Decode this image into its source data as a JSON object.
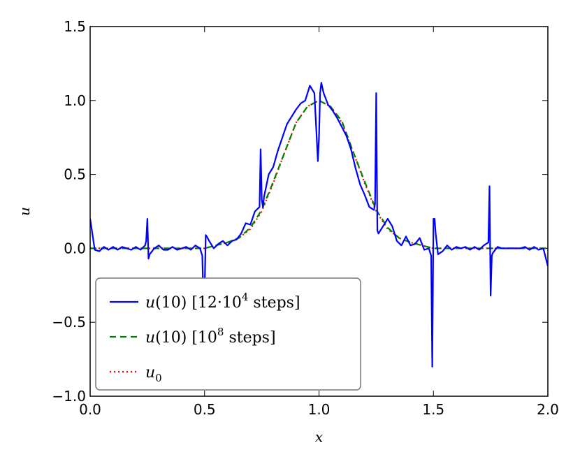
{
  "chart_data": {
    "type": "line",
    "xlabel": "x",
    "ylabel": "u",
    "xlim": [
      0.0,
      2.0
    ],
    "ylim": [
      -1.0,
      1.5
    ],
    "xticks": [
      "0.0",
      "0.5",
      "1.0",
      "1.5",
      "2.0"
    ],
    "yticks": [
      "−1.0",
      "−0.5",
      "0.0",
      "0.5",
      "1.0",
      "1.5"
    ],
    "xtick_values": [
      0.0,
      0.5,
      1.0,
      1.5,
      2.0
    ],
    "ytick_values": [
      -1.0,
      -0.5,
      0.0,
      0.5,
      1.0,
      1.5
    ],
    "grid": false,
    "legend_position": "lower-left",
    "series": [
      {
        "name": "u(10) [12·10^4  steps]",
        "legend": {
          "pre": "u",
          "mid": "(10) [12·10",
          "sup": "4",
          "post": "  steps]"
        },
        "color": "#0000ff",
        "style": "solid",
        "x": [
          0.0,
          0.02,
          0.04,
          0.06,
          0.08,
          0.1,
          0.12,
          0.14,
          0.16,
          0.18,
          0.2,
          0.22,
          0.24,
          0.245,
          0.25,
          0.255,
          0.26,
          0.28,
          0.3,
          0.32,
          0.34,
          0.36,
          0.38,
          0.4,
          0.42,
          0.44,
          0.46,
          0.48,
          0.49,
          0.495,
          0.5,
          0.505,
          0.51,
          0.52,
          0.54,
          0.56,
          0.58,
          0.6,
          0.62,
          0.64,
          0.66,
          0.68,
          0.7,
          0.72,
          0.74,
          0.745,
          0.75,
          0.755,
          0.76,
          0.78,
          0.8,
          0.82,
          0.84,
          0.86,
          0.88,
          0.9,
          0.92,
          0.94,
          0.96,
          0.98,
          0.99,
          0.995,
          1.0,
          1.005,
          1.01,
          1.02,
          1.04,
          1.06,
          1.08,
          1.1,
          1.12,
          1.14,
          1.16,
          1.18,
          1.2,
          1.22,
          1.24,
          1.245,
          1.25,
          1.255,
          1.26,
          1.28,
          1.3,
          1.32,
          1.34,
          1.36,
          1.38,
          1.4,
          1.42,
          1.44,
          1.46,
          1.48,
          1.49,
          1.495,
          1.5,
          1.505,
          1.51,
          1.52,
          1.54,
          1.56,
          1.58,
          1.6,
          1.62,
          1.64,
          1.66,
          1.68,
          1.7,
          1.72,
          1.74,
          1.745,
          1.75,
          1.755,
          1.76,
          1.78,
          1.8,
          1.82,
          1.84,
          1.86,
          1.88,
          1.9,
          1.92,
          1.94,
          1.96,
          1.98,
          2.0
        ],
        "y": [
          0.2,
          -0.01,
          -0.02,
          0.01,
          -0.01,
          0.01,
          -0.01,
          0.01,
          0.0,
          -0.01,
          0.01,
          -0.01,
          0.02,
          0.05,
          0.2,
          -0.07,
          -0.04,
          0.0,
          0.02,
          -0.01,
          -0.01,
          0.01,
          -0.01,
          0.0,
          0.01,
          -0.01,
          0.02,
          0.0,
          -0.05,
          -0.36,
          -0.3,
          0.09,
          0.08,
          0.05,
          0.0,
          0.03,
          0.05,
          0.02,
          0.05,
          0.06,
          0.1,
          0.17,
          0.16,
          0.25,
          0.28,
          0.67,
          0.33,
          0.28,
          0.35,
          0.5,
          0.55,
          0.66,
          0.75,
          0.84,
          0.89,
          0.94,
          0.98,
          1.0,
          1.1,
          1.05,
          0.75,
          0.59,
          0.75,
          1.05,
          1.12,
          1.05,
          0.97,
          0.93,
          0.88,
          0.82,
          0.76,
          0.67,
          0.54,
          0.43,
          0.36,
          0.28,
          0.26,
          0.3,
          1.05,
          0.12,
          0.1,
          0.15,
          0.2,
          0.15,
          0.05,
          0.02,
          0.08,
          0.02,
          0.03,
          0.07,
          -0.01,
          0.0,
          -0.05,
          -0.8,
          0.2,
          0.2,
          0.1,
          -0.04,
          -0.02,
          0.02,
          -0.01,
          0.01,
          0.0,
          0.01,
          -0.01,
          0.01,
          -0.01,
          0.02,
          0.04,
          0.42,
          -0.32,
          -0.05,
          -0.03,
          0.01,
          0.0,
          0.0,
          0.0,
          0.0,
          0.0,
          0.01,
          -0.01,
          0.01,
          -0.01,
          0.0,
          -0.12
        ]
      },
      {
        "name": "u(10) [10^8  steps]",
        "legend": {
          "pre": "u",
          "mid": "(10) [10",
          "sup": "8",
          "post": "  steps]"
        },
        "color": "#008000",
        "style": "dashed",
        "x": [
          0.0,
          0.1,
          0.2,
          0.3,
          0.4,
          0.5,
          0.55,
          0.6,
          0.65,
          0.7,
          0.75,
          0.8,
          0.85,
          0.9,
          0.95,
          1.0,
          1.05,
          1.1,
          1.15,
          1.2,
          1.25,
          1.3,
          1.35,
          1.4,
          1.45,
          1.5,
          1.6,
          1.7,
          1.8,
          1.9,
          2.0
        ],
        "y": [
          0.0,
          0.0,
          0.0,
          0.0,
          0.0,
          0.0,
          0.02,
          0.04,
          0.07,
          0.14,
          0.26,
          0.45,
          0.65,
          0.85,
          0.96,
          1.0,
          0.96,
          0.86,
          0.65,
          0.45,
          0.26,
          0.14,
          0.07,
          0.04,
          0.02,
          0.0,
          0.0,
          0.0,
          0.0,
          0.0,
          0.0
        ]
      },
      {
        "name": "u_0",
        "legend": {
          "pre": "u",
          "sub": "0"
        },
        "color": "#ff0000",
        "style": "dotted",
        "x": [
          0.0,
          0.1,
          0.2,
          0.3,
          0.4,
          0.5,
          0.55,
          0.6,
          0.65,
          0.7,
          0.75,
          0.8,
          0.85,
          0.9,
          0.95,
          1.0,
          1.05,
          1.1,
          1.15,
          1.2,
          1.25,
          1.3,
          1.35,
          1.4,
          1.45,
          1.5,
          1.6,
          1.7,
          1.8,
          1.9,
          2.0
        ],
        "y": [
          0.0,
          0.0,
          0.0,
          0.0,
          0.0,
          0.0,
          0.02,
          0.04,
          0.07,
          0.13,
          0.25,
          0.44,
          0.65,
          0.85,
          0.96,
          1.0,
          0.96,
          0.85,
          0.65,
          0.44,
          0.25,
          0.13,
          0.07,
          0.04,
          0.02,
          0.0,
          0.0,
          0.0,
          0.0,
          0.0,
          0.0
        ]
      }
    ]
  }
}
